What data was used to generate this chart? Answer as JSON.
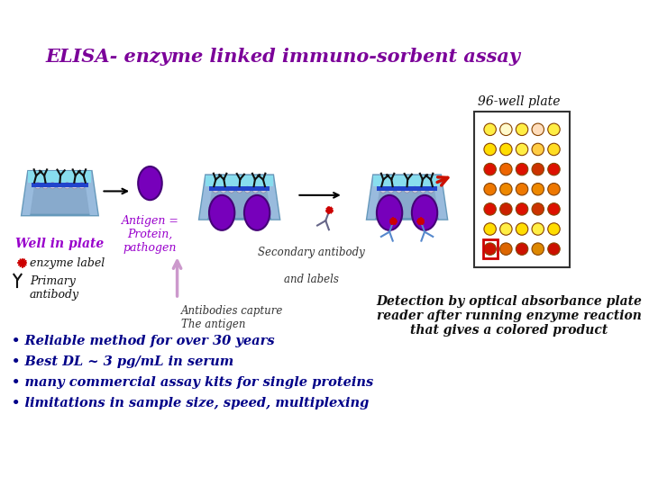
{
  "title": "ELISA- enzyme linked immuno-sorbent assay",
  "title_color": "#7B0099",
  "title_fontsize": 15,
  "bg_color": "#ffffff",
  "plate_label": "96-well plate",
  "plate_label_color": "#111111",
  "well_colors_grid": [
    [
      "#cc1100",
      "#dd6600",
      "#cc1100",
      "#dd8800",
      "#cc1100"
    ],
    [
      "#ffdd00",
      "#ffee44",
      "#ffdd00",
      "#ffee44",
      "#ffdd00"
    ],
    [
      "#dd1100",
      "#cc2200",
      "#dd1100",
      "#cc3300",
      "#dd1100"
    ],
    [
      "#ee7700",
      "#ee8800",
      "#ee7700",
      "#ee8800",
      "#ee7700"
    ],
    [
      "#dd1100",
      "#ee6600",
      "#dd1100",
      "#cc3300",
      "#dd1100"
    ],
    [
      "#ffdd00",
      "#ffdd00",
      "#ffee44",
      "#ffcc44",
      "#ffdd22"
    ],
    [
      "#ffee44",
      "#fffacc",
      "#ffee44",
      "#ffddbb",
      "#ffee44"
    ]
  ],
  "bullet_points": [
    " Reliable method for over 30 years",
    " Best DL ~ 3 pg/mL in serum",
    " many commercial assay kits for single proteins",
    " limitations in sample size, speed, multiplexing"
  ],
  "bullet_color": "#000088",
  "bullet_fontsize": 10.5,
  "detection_text": "Detection by optical absorbance plate\nreader after running enzyme reaction\nthat gives a colored product",
  "detection_color": "#111111",
  "detection_fontsize": 10,
  "well_label": "Well in plate",
  "well_label_color": "#9900cc",
  "antigen_label": "Antigen =\nProtein,\npathogen",
  "antigen_color": "#9900cc",
  "secondary_label": "Secondary antibody\n\nand labels",
  "secondary_color": "#333333",
  "antibodies_label": "Antibodies capture",
  "antibodies_color": "#333333",
  "antigen2_label": "The antigen",
  "antigen2_color": "#333333",
  "enzyme_label": "enzyme label",
  "primary_label": "Primary\nantibody",
  "tray_color": "#88aacc",
  "tray_side_color": "#6699bb",
  "liquid_color": "#88ddee",
  "bead_color": "#bbbbcc",
  "antigen_fill": "#7700bb",
  "antigen_edge": "#440077",
  "antibody_color_primary": "#111111",
  "antibody_color_secondary": "#4488cc",
  "star_color": "#cc0000",
  "arrow_color_main": "#111111",
  "arrow_color_red": "#cc1100",
  "arrow_color_up": "#cc88cc"
}
